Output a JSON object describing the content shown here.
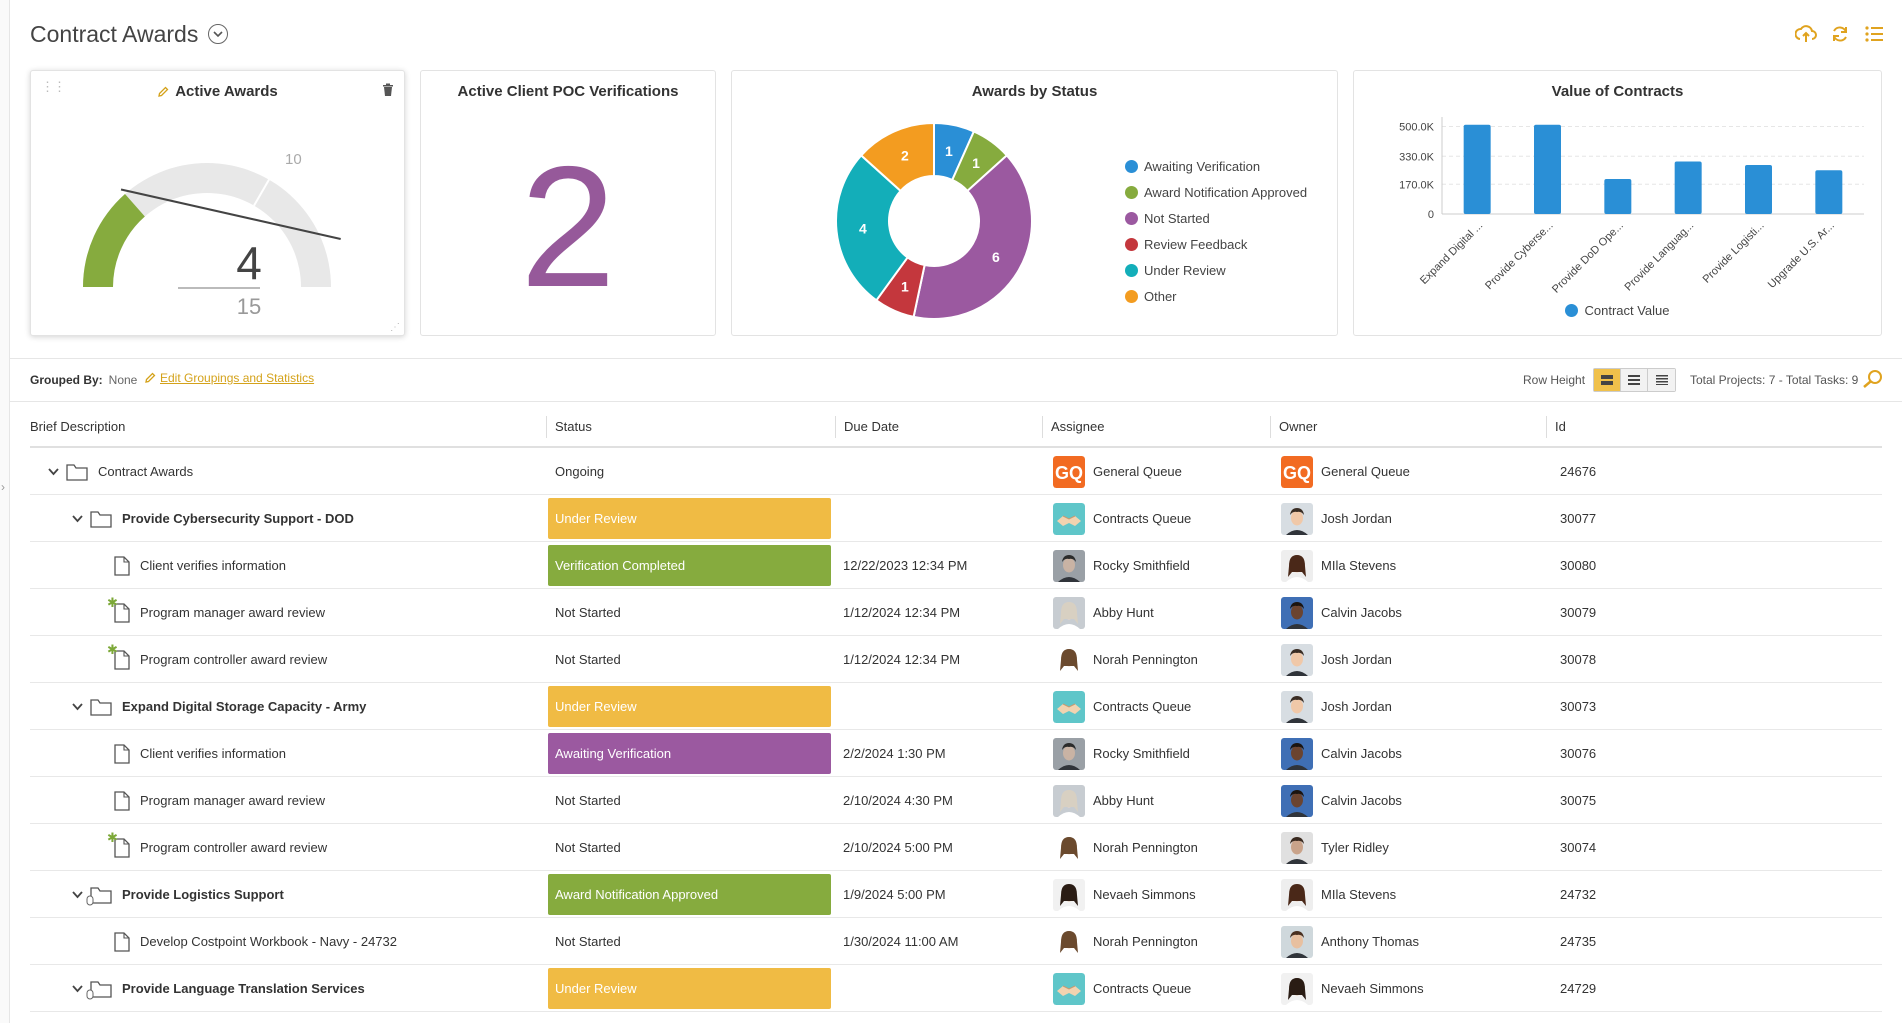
{
  "page": {
    "title": "Contract Awards"
  },
  "widgets": {
    "active_awards": {
      "title": "Active Awards",
      "value": "4",
      "max": "15",
      "tick_label": "10",
      "fraction": 0.27
    },
    "poc": {
      "title": "Active Client POC Verifications",
      "value": "2"
    },
    "awards_by_status": {
      "title": "Awards by Status"
    },
    "value_of_contracts": {
      "title": "Value of Contracts",
      "legend": "Contract Value"
    }
  },
  "chart_data": [
    {
      "type": "pie",
      "title": "Awards by Status",
      "slices": [
        {
          "label": "Awaiting Verification",
          "value": 1,
          "color": "#2a8fd6"
        },
        {
          "label": "Award Notification Approved",
          "value": 1,
          "color": "#86ab3e"
        },
        {
          "label": "Not Started",
          "value": 6,
          "color": "#9b59a0"
        },
        {
          "label": "Review Feedback",
          "value": 1,
          "color": "#c4373d"
        },
        {
          "label": "Under Review",
          "value": 4,
          "color": "#13aeb9"
        },
        {
          "label": "Other",
          "value": 2,
          "color": "#f39c20"
        }
      ]
    },
    {
      "type": "bar",
      "title": "Value of Contracts",
      "categories": [
        "Expand Digital ...",
        "Provide Cyberse...",
        "Provide DoD Ope...",
        "Provide Languag...",
        "Provide Logisti...",
        "Upgrade U.S. Ar..."
      ],
      "series": [
        {
          "name": "Contract Value",
          "values": [
            510000,
            510000,
            200000,
            300000,
            280000,
            250000
          ],
          "color": "#2a8fd6"
        }
      ],
      "yticks": [
        "500.0K",
        "330.0K",
        "170.0K",
        "0"
      ],
      "ylim": [
        0,
        520000
      ]
    }
  ],
  "toolbar": {
    "grouped_by_label": "Grouped By:",
    "grouped_by_value": "None",
    "edit_link": "Edit Groupings and Statistics",
    "row_height_label": "Row Height",
    "totals": "Total Projects: 7 - Total Tasks: 9"
  },
  "columns": [
    "Brief Description",
    "Status",
    "Due Date",
    "Assignee",
    "Owner",
    "Id"
  ],
  "colors": {
    "under_review": "#f0bb44",
    "verification_completed": "#86ab3e",
    "awaiting_verification": "#9b59a0",
    "award_notification_approved": "#86ab3e",
    "accent": "#d4a21a"
  },
  "rows": [
    {
      "desc": "Contract Awards",
      "level": 0,
      "type": "folder",
      "bold": false,
      "status": "Ongoing",
      "status_style": "plain",
      "due": "",
      "assignee": "General Queue",
      "assignee_avatar": "gq",
      "owner": "General Queue",
      "owner_avatar": "gq",
      "id": "24676"
    },
    {
      "desc": "Provide Cybersecurity Support - DOD",
      "level": 1,
      "type": "folder",
      "bold": true,
      "status": "Under Review",
      "status_style": "under_review",
      "due": "",
      "assignee": "Contracts Queue",
      "assignee_avatar": "handshake",
      "owner": "Josh Jordan",
      "owner_avatar": "man1",
      "id": "30077"
    },
    {
      "desc": "Client verifies information",
      "level": 2,
      "type": "task",
      "bold": false,
      "status": "Verification Completed",
      "status_style": "verification_completed",
      "due": "12/22/2023  12:34 PM",
      "assignee": "Rocky Smithfield",
      "assignee_avatar": "man2",
      "owner": "MIla Stevens",
      "owner_avatar": "woman1",
      "id": "30080"
    },
    {
      "desc": "Program manager award review",
      "level": 2,
      "type": "task-new",
      "bold": false,
      "status": "Not Started",
      "status_style": "plain",
      "due": "1/12/2024  12:34 PM",
      "assignee": "Abby Hunt",
      "assignee_avatar": "woman2",
      "owner": "Calvin Jacobs",
      "owner_avatar": "man3",
      "id": "30079"
    },
    {
      "desc": "Program controller award review",
      "level": 2,
      "type": "task-new",
      "bold": false,
      "status": "Not Started",
      "status_style": "plain",
      "due": "1/12/2024  12:34 PM",
      "assignee": "Norah Pennington",
      "assignee_avatar": "woman3",
      "owner": "Josh Jordan",
      "owner_avatar": "man1",
      "id": "30078"
    },
    {
      "desc": "Expand Digital Storage Capacity - Army",
      "level": 1,
      "type": "folder",
      "bold": true,
      "status": "Under Review",
      "status_style": "under_review",
      "due": "",
      "assignee": "Contracts Queue",
      "assignee_avatar": "handshake",
      "owner": "Josh Jordan",
      "owner_avatar": "man1",
      "id": "30073"
    },
    {
      "desc": "Client verifies information",
      "level": 2,
      "type": "task",
      "bold": false,
      "status": "Awaiting Verification",
      "status_style": "awaiting_verification",
      "due": "2/2/2024  1:30 PM",
      "assignee": "Rocky Smithfield",
      "assignee_avatar": "man2",
      "owner": "Calvin Jacobs",
      "owner_avatar": "man3",
      "id": "30076"
    },
    {
      "desc": "Program manager award review",
      "level": 2,
      "type": "task",
      "bold": false,
      "status": "Not Started",
      "status_style": "plain",
      "due": "2/10/2024  4:30 PM",
      "assignee": "Abby Hunt",
      "assignee_avatar": "woman2",
      "owner": "Calvin Jacobs",
      "owner_avatar": "man3",
      "id": "30075"
    },
    {
      "desc": "Program controller award review",
      "level": 2,
      "type": "task-new",
      "bold": false,
      "status": "Not Started",
      "status_style": "plain",
      "due": "2/10/2024  5:00 PM",
      "assignee": "Norah Pennington",
      "assignee_avatar": "woman3",
      "owner": "Tyler Ridley",
      "owner_avatar": "man4",
      "id": "30074"
    },
    {
      "desc": "Provide Logistics Support",
      "level": 1,
      "type": "folder-link",
      "bold": true,
      "status": "Award Notification Approved",
      "status_style": "award_notification_approved",
      "due": "1/9/2024  5:00 PM",
      "assignee": "Nevaeh Simmons",
      "assignee_avatar": "woman4",
      "owner": "MIla Stevens",
      "owner_avatar": "woman1",
      "id": "24732"
    },
    {
      "desc": "Develop Costpoint Workbook - Navy - 24732",
      "level": 2,
      "type": "task",
      "bold": false,
      "status": "Not Started",
      "status_style": "plain",
      "due": "1/30/2024  11:00 AM",
      "assignee": "Norah Pennington",
      "assignee_avatar": "woman3",
      "owner": "Anthony Thomas",
      "owner_avatar": "man5",
      "id": "24735"
    },
    {
      "desc": "Provide Language Translation Services",
      "level": 1,
      "type": "folder-link",
      "bold": true,
      "status": "Under Review",
      "status_style": "under_review",
      "due": "",
      "assignee": "Contracts Queue",
      "assignee_avatar": "handshake",
      "owner": "Nevaeh Simmons",
      "owner_avatar": "woman4",
      "id": "24729"
    }
  ]
}
